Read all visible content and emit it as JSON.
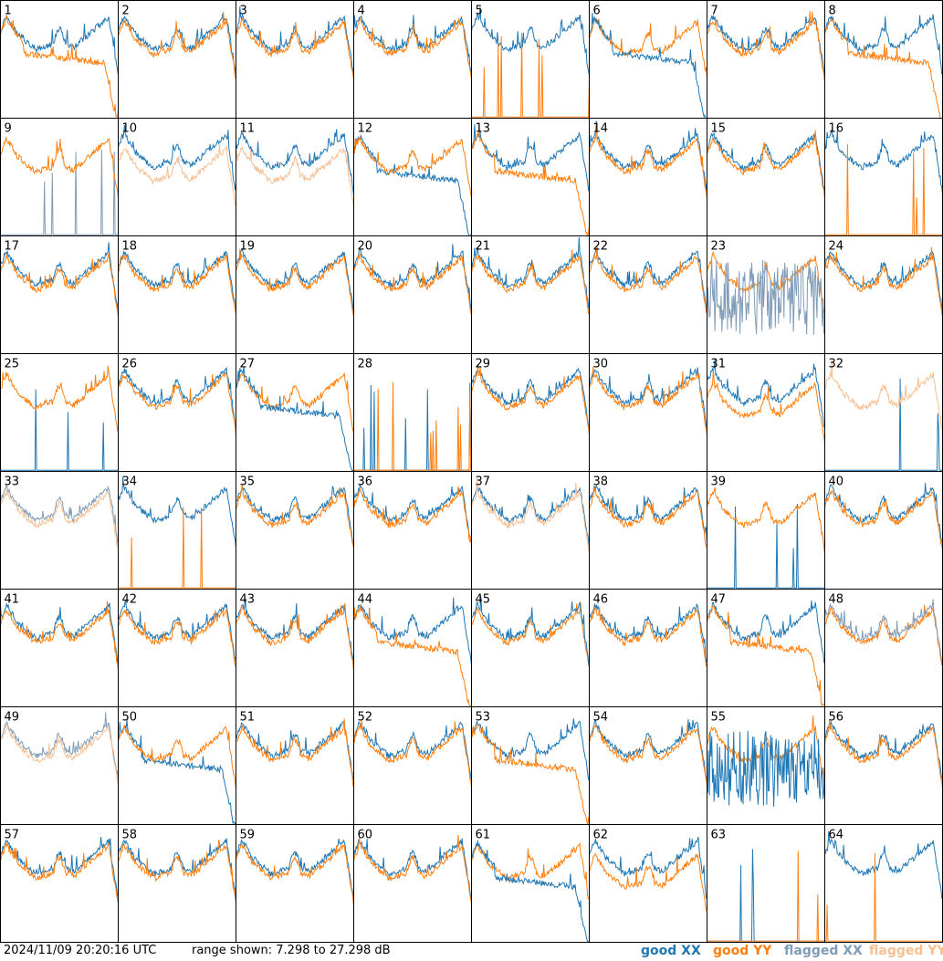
{
  "timestamp": "2024/11/09 20:20:16 UTC",
  "range_text": "range shown: 7.298 to 27.298 dB",
  "legend": [
    {
      "label": "good XX",
      "color": "#1f77b4"
    },
    {
      "label": "good YY",
      "color": "#ff7f0e"
    },
    {
      "label": "flagged XX",
      "color": "#7f9cb8"
    },
    {
      "label": "flagged YY",
      "color": "#f7bf92"
    }
  ],
  "chart_data": {
    "type": "line",
    "ylim": [
      7.298,
      27.298
    ],
    "grid": false,
    "legend_placement": "bottom-right",
    "panels": [
      {
        "label": "1",
        "xx": "good",
        "yy": "good",
        "front": "yy",
        "xx_mode": "normal",
        "yy_mode": "rolloff"
      },
      {
        "label": "2",
        "xx": "good",
        "yy": "good",
        "front": "yy",
        "xx_mode": "normal",
        "yy_mode": "normal"
      },
      {
        "label": "3",
        "xx": "good",
        "yy": "good",
        "front": "yy",
        "xx_mode": "normal",
        "yy_mode": "normal"
      },
      {
        "label": "4",
        "xx": "good",
        "yy": "good",
        "front": "yy",
        "xx_mode": "normal",
        "yy_mode": "normal"
      },
      {
        "label": "5",
        "xx": "good",
        "yy": "good",
        "front": "yy",
        "xx_mode": "normal",
        "yy_mode": "dead"
      },
      {
        "label": "6",
        "xx": "good",
        "yy": "good",
        "front": "xx",
        "xx_mode": "rolloff",
        "yy_mode": "normal"
      },
      {
        "label": "7",
        "xx": "good",
        "yy": "good",
        "front": "yy",
        "xx_mode": "normal",
        "yy_mode": "normal"
      },
      {
        "label": "8",
        "xx": "good",
        "yy": "good",
        "front": "yy",
        "xx_mode": "normal",
        "yy_mode": "rolloff"
      },
      {
        "label": "9",
        "xx": "flagged",
        "yy": "good",
        "front": "yy",
        "xx_mode": "dead",
        "yy_mode": "normal"
      },
      {
        "label": "10",
        "xx": "good",
        "yy": "flagged",
        "front": "xx",
        "xx_mode": "normal",
        "yy_mode": "low"
      },
      {
        "label": "11",
        "xx": "good",
        "yy": "flagged",
        "front": "xx",
        "xx_mode": "normal",
        "yy_mode": "low"
      },
      {
        "label": "12",
        "xx": "good",
        "yy": "good",
        "front": "yy",
        "xx_mode": "rolloff",
        "yy_mode": "normal"
      },
      {
        "label": "13",
        "xx": "good",
        "yy": "good",
        "front": "yy",
        "xx_mode": "normal",
        "yy_mode": "rolloff"
      },
      {
        "label": "14",
        "xx": "good",
        "yy": "good",
        "front": "yy",
        "xx_mode": "normal",
        "yy_mode": "normal"
      },
      {
        "label": "15",
        "xx": "good",
        "yy": "good",
        "front": "yy",
        "xx_mode": "normal",
        "yy_mode": "normal"
      },
      {
        "label": "16",
        "xx": "good",
        "yy": "good",
        "front": "yy",
        "xx_mode": "normal",
        "yy_mode": "dead"
      },
      {
        "label": "17",
        "xx": "good",
        "yy": "good",
        "front": "yy",
        "xx_mode": "normal",
        "yy_mode": "normal"
      },
      {
        "label": "18",
        "xx": "good",
        "yy": "good",
        "front": "yy",
        "xx_mode": "normal",
        "yy_mode": "normal"
      },
      {
        "label": "19",
        "xx": "good",
        "yy": "good",
        "front": "yy",
        "xx_mode": "normal",
        "yy_mode": "normal"
      },
      {
        "label": "20",
        "xx": "good",
        "yy": "good",
        "front": "yy",
        "xx_mode": "normal",
        "yy_mode": "normal"
      },
      {
        "label": "21",
        "xx": "good",
        "yy": "good",
        "front": "yy",
        "xx_mode": "normal",
        "yy_mode": "normal"
      },
      {
        "label": "22",
        "xx": "good",
        "yy": "good",
        "front": "yy",
        "xx_mode": "normal",
        "yy_mode": "normal"
      },
      {
        "label": "23",
        "xx": "flagged",
        "yy": "good",
        "front": "xx",
        "xx_mode": "noisy",
        "yy_mode": "normal"
      },
      {
        "label": "24",
        "xx": "good",
        "yy": "good",
        "front": "yy",
        "xx_mode": "normal",
        "yy_mode": "normal"
      },
      {
        "label": "25",
        "xx": "good",
        "yy": "good",
        "front": "yy",
        "xx_mode": "dead",
        "yy_mode": "normal"
      },
      {
        "label": "26",
        "xx": "good",
        "yy": "good",
        "front": "yy",
        "xx_mode": "normal",
        "yy_mode": "normal"
      },
      {
        "label": "27",
        "xx": "good",
        "yy": "good",
        "front": "xx",
        "xx_mode": "rolloff",
        "yy_mode": "normal"
      },
      {
        "label": "28",
        "xx": "good",
        "yy": "good",
        "front": "yy",
        "xx_mode": "dead",
        "yy_mode": "dead"
      },
      {
        "label": "29",
        "xx": "good",
        "yy": "good",
        "front": "yy",
        "xx_mode": "normal",
        "yy_mode": "normal"
      },
      {
        "label": "30",
        "xx": "good",
        "yy": "good",
        "front": "yy",
        "xx_mode": "normal",
        "yy_mode": "normal"
      },
      {
        "label": "31",
        "xx": "good",
        "yy": "good",
        "front": "yy",
        "xx_mode": "normal",
        "yy_mode": "low"
      },
      {
        "label": "32",
        "xx": "good",
        "yy": "flagged",
        "front": "yy",
        "xx_mode": "dead",
        "yy_mode": "normal"
      },
      {
        "label": "33",
        "xx": "flagged",
        "yy": "flagged",
        "front": "yy",
        "xx_mode": "normal",
        "yy_mode": "normal"
      },
      {
        "label": "34",
        "xx": "good",
        "yy": "good",
        "front": "yy",
        "xx_mode": "normal",
        "yy_mode": "dead"
      },
      {
        "label": "35",
        "xx": "good",
        "yy": "good",
        "front": "yy",
        "xx_mode": "normal",
        "yy_mode": "normal"
      },
      {
        "label": "36",
        "xx": "good",
        "yy": "good",
        "front": "yy",
        "xx_mode": "normal",
        "yy_mode": "normal"
      },
      {
        "label": "37",
        "xx": "good",
        "yy": "flagged",
        "front": "yy",
        "xx_mode": "normal",
        "yy_mode": "normal"
      },
      {
        "label": "38",
        "xx": "good",
        "yy": "good",
        "front": "yy",
        "xx_mode": "normal",
        "yy_mode": "normal"
      },
      {
        "label": "39",
        "xx": "good",
        "yy": "good",
        "front": "yy",
        "xx_mode": "dead",
        "yy_mode": "normal"
      },
      {
        "label": "40",
        "xx": "good",
        "yy": "good",
        "front": "yy",
        "xx_mode": "normal",
        "yy_mode": "normal"
      },
      {
        "label": "41",
        "xx": "good",
        "yy": "good",
        "front": "yy",
        "xx_mode": "normal",
        "yy_mode": "normal"
      },
      {
        "label": "42",
        "xx": "good",
        "yy": "good",
        "front": "yy",
        "xx_mode": "normal",
        "yy_mode": "normal"
      },
      {
        "label": "43",
        "xx": "good",
        "yy": "good",
        "front": "yy",
        "xx_mode": "normal",
        "yy_mode": "normal"
      },
      {
        "label": "44",
        "xx": "good",
        "yy": "good",
        "front": "yy",
        "xx_mode": "normal",
        "yy_mode": "rolloff"
      },
      {
        "label": "45",
        "xx": "good",
        "yy": "good",
        "front": "xx",
        "xx_mode": "normal",
        "yy_mode": "normal"
      },
      {
        "label": "46",
        "xx": "good",
        "yy": "good",
        "front": "yy",
        "xx_mode": "normal",
        "yy_mode": "normal"
      },
      {
        "label": "47",
        "xx": "good",
        "yy": "good",
        "front": "yy",
        "xx_mode": "normal",
        "yy_mode": "rolloff"
      },
      {
        "label": "48",
        "xx": "flagged",
        "yy": "good",
        "front": "xx",
        "xx_mode": "normal",
        "yy_mode": "normal"
      },
      {
        "label": "49",
        "xx": "flagged",
        "yy": "flagged",
        "front": "yy",
        "xx_mode": "normal",
        "yy_mode": "normal"
      },
      {
        "label": "50",
        "xx": "good",
        "yy": "good",
        "front": "yy",
        "xx_mode": "rolloff",
        "yy_mode": "normal"
      },
      {
        "label": "51",
        "xx": "good",
        "yy": "good",
        "front": "yy",
        "xx_mode": "normal",
        "yy_mode": "normal"
      },
      {
        "label": "52",
        "xx": "good",
        "yy": "good",
        "front": "yy",
        "xx_mode": "normal",
        "yy_mode": "normal"
      },
      {
        "label": "53",
        "xx": "good",
        "yy": "good",
        "front": "yy",
        "xx_mode": "normal",
        "yy_mode": "rolloff"
      },
      {
        "label": "54",
        "xx": "good",
        "yy": "good",
        "front": "yy",
        "xx_mode": "normal",
        "yy_mode": "normal"
      },
      {
        "label": "55",
        "xx": "good",
        "yy": "good",
        "front": "xx",
        "xx_mode": "noisy",
        "yy_mode": "normal"
      },
      {
        "label": "56",
        "xx": "good",
        "yy": "good",
        "front": "yy",
        "xx_mode": "normal",
        "yy_mode": "normal"
      },
      {
        "label": "57",
        "xx": "good",
        "yy": "good",
        "front": "yy",
        "xx_mode": "normal",
        "yy_mode": "normal"
      },
      {
        "label": "58",
        "xx": "good",
        "yy": "good",
        "front": "yy",
        "xx_mode": "normal",
        "yy_mode": "normal"
      },
      {
        "label": "59",
        "xx": "good",
        "yy": "good",
        "front": "yy",
        "xx_mode": "normal",
        "yy_mode": "normal"
      },
      {
        "label": "60",
        "xx": "good",
        "yy": "good",
        "front": "yy",
        "xx_mode": "normal",
        "yy_mode": "normal"
      },
      {
        "label": "61",
        "xx": "good",
        "yy": "good",
        "front": "xx",
        "xx_mode": "rolloff",
        "yy_mode": "normal"
      },
      {
        "label": "62",
        "xx": "good",
        "yy": "good",
        "front": "yy",
        "xx_mode": "normal",
        "yy_mode": "low"
      },
      {
        "label": "63",
        "xx": "good",
        "yy": "good",
        "front": "yy",
        "xx_mode": "dead",
        "yy_mode": "dead"
      },
      {
        "label": "64",
        "xx": "good",
        "yy": "good",
        "front": "yy",
        "xx_mode": "normal",
        "yy_mode": "dead"
      }
    ]
  }
}
